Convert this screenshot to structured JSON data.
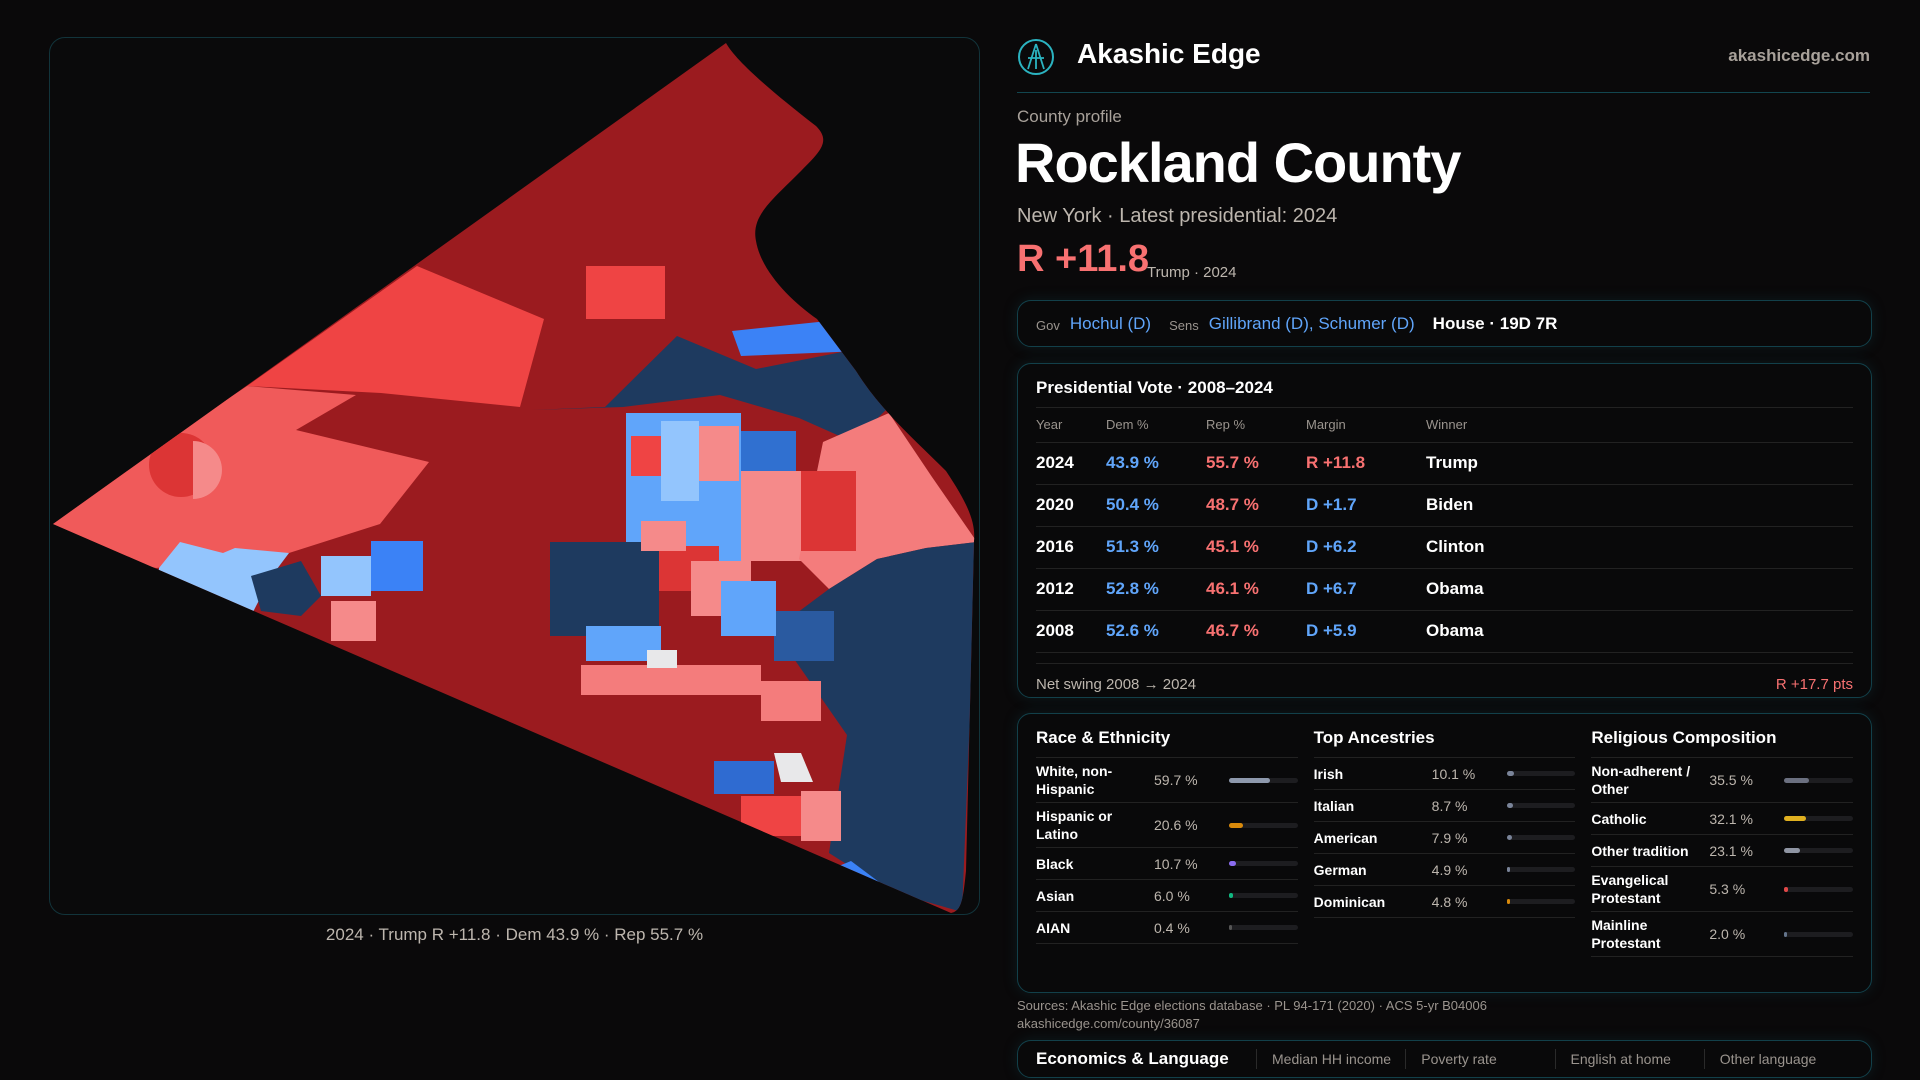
{
  "brand": {
    "name": "Akashic Edge",
    "site": "akashicedge.com",
    "logo_icon": "compass-star-icon"
  },
  "profile": {
    "eyebrow": "County profile",
    "title": "Rockland County",
    "subtitle": "New York · Latest presidential: 2024",
    "margin": "R +11.8",
    "margin_sub": "Trump · 2024"
  },
  "officials": {
    "gov_label": "Gov",
    "gov": "Hochul (D)",
    "sens_label": "Sens",
    "sens": "Gillibrand (D), Schumer (D)",
    "house": "House · 19D 7R"
  },
  "map": {
    "caption": "2024 · Trump R +11.8 · Dem 43.9 % · Rep 55.7 %"
  },
  "presidential": {
    "title": "Presidential Vote · 2008–2024",
    "headers": [
      "Year",
      "Dem %",
      "Rep %",
      "Margin",
      "Winner"
    ],
    "rows": [
      {
        "year": "2024",
        "dem": "43.9 %",
        "rep": "55.7 %",
        "margin": "R +11.8",
        "party": "R",
        "winner": "Trump"
      },
      {
        "year": "2020",
        "dem": "50.4 %",
        "rep": "48.7 %",
        "margin": "D +1.7",
        "party": "D",
        "winner": "Biden"
      },
      {
        "year": "2016",
        "dem": "51.3 %",
        "rep": "45.1 %",
        "margin": "D +6.2",
        "party": "D",
        "winner": "Clinton"
      },
      {
        "year": "2012",
        "dem": "52.8 %",
        "rep": "46.1 %",
        "margin": "D +6.7",
        "party": "D",
        "winner": "Obama"
      },
      {
        "year": "2008",
        "dem": "52.6 %",
        "rep": "46.7 %",
        "margin": "D +5.9",
        "party": "D",
        "winner": "Obama"
      }
    ],
    "swing_label": "Net swing 2008 → 2024",
    "swing_value": "R +17.7 pts"
  },
  "demographics": [
    {
      "title": "Race & Ethnicity",
      "items": [
        {
          "label": "White, non-Hispanic",
          "pct": "59.7 %",
          "value": 59.7,
          "color": "#8e99ad"
        },
        {
          "label": "Hispanic or Latino",
          "pct": "20.6 %",
          "value": 20.6,
          "color": "#d98a0b"
        },
        {
          "label": "Black",
          "pct": "10.7 %",
          "value": 10.7,
          "color": "#8b6cf0"
        },
        {
          "label": "Asian",
          "pct": "6.0 %",
          "value": 6.0,
          "color": "#10b981"
        },
        {
          "label": "AIAN",
          "pct": "0.4 %",
          "value": 0.4,
          "color": "#555"
        }
      ]
    },
    {
      "title": "Top Ancestries",
      "items": [
        {
          "label": "Irish",
          "pct": "10.1 %",
          "value": 10.1,
          "color": "#7a8499"
        },
        {
          "label": "Italian",
          "pct": "8.7 %",
          "value": 8.7,
          "color": "#7a8499"
        },
        {
          "label": "American",
          "pct": "7.9 %",
          "value": 7.9,
          "color": "#7a8499"
        },
        {
          "label": "German",
          "pct": "4.9 %",
          "value": 4.9,
          "color": "#7a8499"
        },
        {
          "label": "Dominican",
          "pct": "4.8 %",
          "value": 4.8,
          "color": "#d98a0b"
        }
      ]
    },
    {
      "title": "Religious Composition",
      "items": [
        {
          "label": "Non-adherent / Other",
          "pct": "35.5 %",
          "value": 35.5,
          "color": "#6b7080"
        },
        {
          "label": "Catholic",
          "pct": "32.1 %",
          "value": 32.1,
          "color": "#e0b020"
        },
        {
          "label": "Other tradition",
          "pct": "23.1 %",
          "value": 23.1,
          "color": "#8f95a3"
        },
        {
          "label": "Evangelical Protestant",
          "pct": "5.3 %",
          "value": 5.3,
          "color": "#e04848"
        },
        {
          "label": "Mainline Protestant",
          "pct": "2.0 %",
          "value": 2.0,
          "color": "#64748b"
        }
      ]
    }
  ],
  "economics": {
    "title": "Economics & Language",
    "columns": [
      "Median HH income",
      "Poverty rate",
      "English at home",
      "Other language"
    ]
  },
  "sources": {
    "line1": "Sources: Akashic Edge elections database · PL 94-171 (2020) · ACS 5-yr B04006",
    "line2": "akashicedge.com/county/36087"
  },
  "colors": {
    "dem": "#60a5fa",
    "rep": "#f87171",
    "accent": "#12404a"
  }
}
